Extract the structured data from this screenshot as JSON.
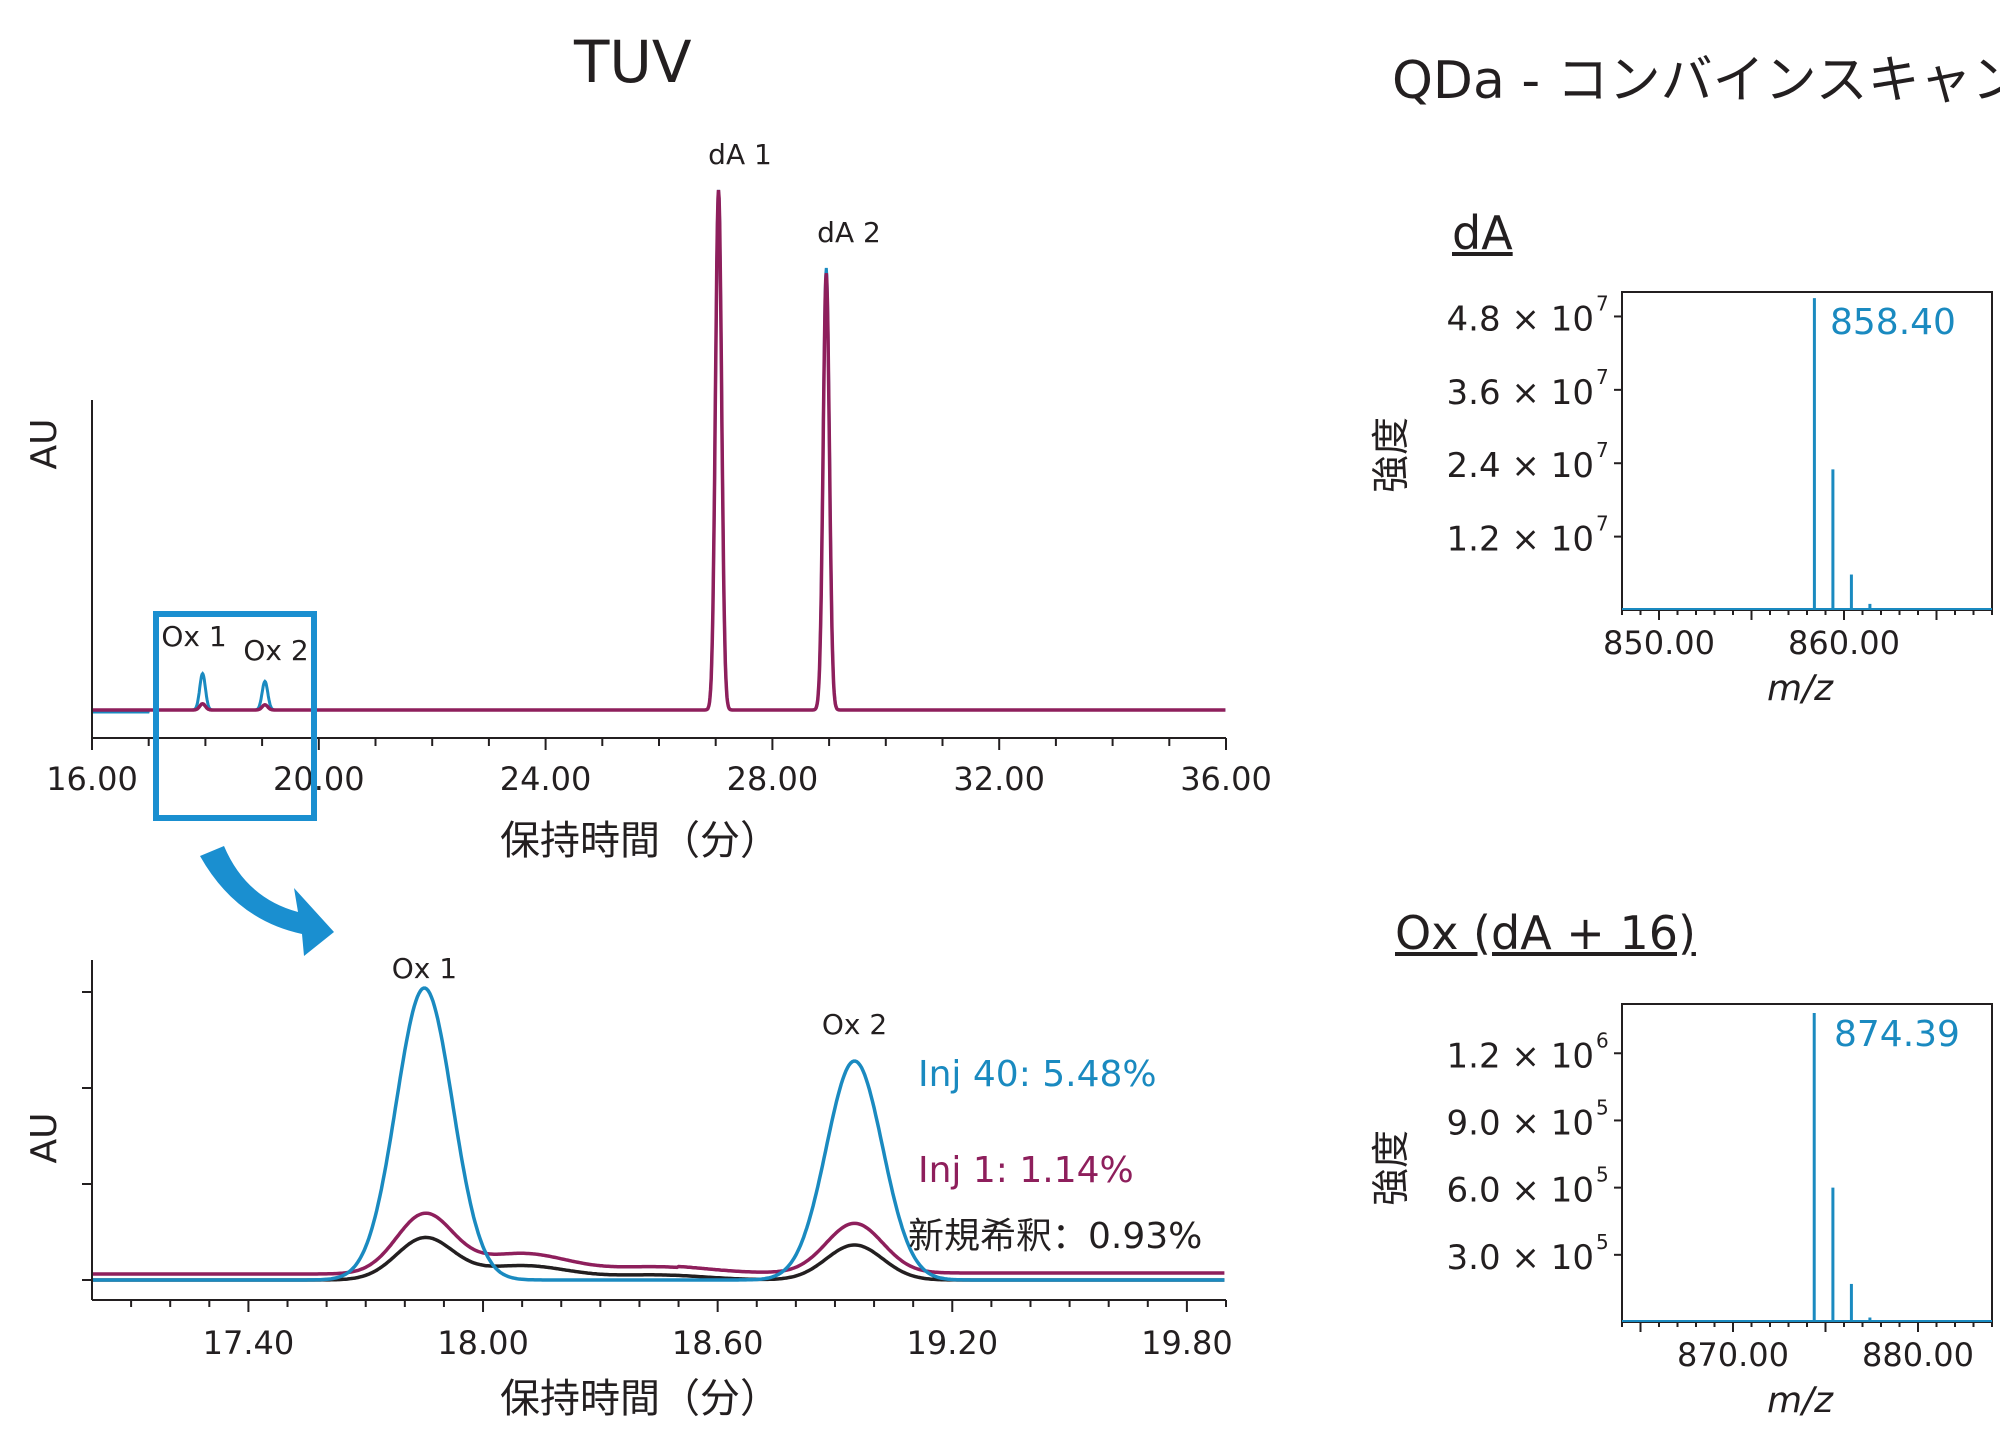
{
  "titles": {
    "tuv": "TUV",
    "qda": "QDa - コンバインスキャン",
    "qda_da": "dA",
    "qda_ox": "Ox (dA + 16)"
  },
  "colors": {
    "inj40": "#1a8ac0",
    "inj1": "#8e1f5c",
    "fresh": "#231f20",
    "zoom_box": "#1a8fd0",
    "spectrum": "#1a8ac0"
  },
  "chart_data": [
    {
      "id": "tuv_full",
      "type": "line",
      "ylabel": "AU",
      "xlabel": "保持時間（分）",
      "xlim": [
        16.0,
        36.0
      ],
      "xticks": [
        "16.00",
        "20.00",
        "24.00",
        "28.00",
        "32.00",
        "36.00"
      ],
      "peaks": [
        {
          "label": "Ox 1",
          "x": 17.95
        },
        {
          "label": "Ox 2",
          "x": 19.05
        },
        {
          "label": "dA 1",
          "x": 27.05
        },
        {
          "label": "dA 2",
          "x": 28.95
        }
      ],
      "series": [
        {
          "values_note": "Inj 40",
          "peaks": [
            [
              17.95,
              0.07
            ],
            [
              19.05,
              0.055
            ],
            [
              27.05,
              1.0
            ],
            [
              28.95,
              0.85
            ]
          ]
        },
        {
          "values_note": "Inj 1",
          "peaks": [
            [
              17.95,
              0.012
            ],
            [
              19.05,
              0.01
            ],
            [
              27.05,
              1.0
            ],
            [
              28.95,
              0.84
            ]
          ]
        }
      ],
      "zoom_range": [
        17.2,
        20.0
      ]
    },
    {
      "id": "tuv_zoom",
      "type": "line",
      "ylabel": "AU",
      "xlabel": "保持時間（分）",
      "xlim": [
        17.0,
        19.9
      ],
      "xticks": [
        "17.40",
        "18.00",
        "18.60",
        "19.20",
        "19.80"
      ],
      "peak_labels": [
        {
          "label": "Ox 1",
          "x": 17.85
        },
        {
          "label": "Ox 2",
          "x": 18.95
        }
      ],
      "series": [
        {
          "name": "Inj 40: 5.48%",
          "peaks": [
            [
              17.85,
              1.0
            ],
            [
              18.95,
              0.75
            ]
          ]
        },
        {
          "name": "Inj 1: 1.14%",
          "peaks": [
            [
              17.85,
              0.2
            ],
            [
              18.95,
              0.17
            ]
          ]
        },
        {
          "name": "新規希釈：0.93%",
          "peaks": [
            [
              17.85,
              0.14
            ],
            [
              18.95,
              0.12
            ]
          ]
        }
      ]
    },
    {
      "id": "ms_da",
      "type": "bar",
      "ylabel": "強度",
      "xlabel": "m/z",
      "xlim": [
        848.0,
        868.0
      ],
      "xticks": [
        "850.00",
        "860.00"
      ],
      "yticks": [
        {
          "mant": "1.2 × 10",
          "exp": "7",
          "v": 12000000
        },
        {
          "mant": "2.4 × 10",
          "exp": "7",
          "v": 24000000
        },
        {
          "mant": "3.6 × 10",
          "exp": "7",
          "v": 36000000
        },
        {
          "mant": "4.8 × 10",
          "exp": "7",
          "v": 48000000
        }
      ],
      "ylim": [
        0,
        52000000
      ],
      "base_peak_label": "858.40",
      "peaks": [
        [
          858.4,
          51000000
        ],
        [
          859.4,
          23000000
        ],
        [
          860.4,
          5800000
        ],
        [
          861.4,
          1000000
        ]
      ]
    },
    {
      "id": "ms_ox",
      "type": "bar",
      "ylabel": "強度",
      "xlabel": "m/z",
      "xlim": [
        864.0,
        884.0
      ],
      "xticks": [
        "870.00",
        "880.00"
      ],
      "yticks": [
        {
          "mant": "3.0 × 10",
          "exp": "5",
          "v": 300000
        },
        {
          "mant": "6.0 × 10",
          "exp": "5",
          "v": 600000
        },
        {
          "mant": "9.0 × 10",
          "exp": "5",
          "v": 900000
        },
        {
          "mant": "1.2 × 10",
          "exp": "6",
          "v": 1200000
        }
      ],
      "ylim": [
        0,
        1420000
      ],
      "base_peak_label": "874.39",
      "peaks": [
        [
          874.39,
          1380000
        ],
        [
          875.4,
          600000
        ],
        [
          876.4,
          170000
        ],
        [
          877.4,
          20000
        ]
      ]
    }
  ]
}
